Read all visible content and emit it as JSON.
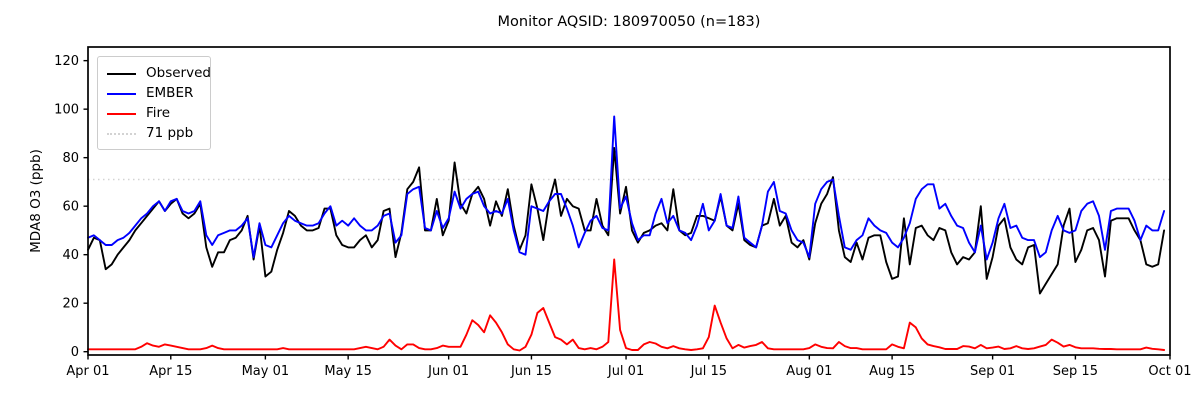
{
  "title": "Monitor AQSID: 180970050 (n=183)",
  "figure": {
    "background": "#ffffff",
    "axes_edge_color": "#000000"
  },
  "legend": {
    "items": [
      {
        "label": "Observed",
        "color": "#000000",
        "style": "solid"
      },
      {
        "label": "EMBER",
        "color": "#0000ff",
        "style": "solid"
      },
      {
        "label": "Fire",
        "color": "#ff0000",
        "style": "solid"
      },
      {
        "label": "71 ppb",
        "color": "#d3d3d3",
        "style": "dotted"
      }
    ]
  },
  "chart_data": {
    "type": "line",
    "title": "Monitor AQSID: 180970050 (n=183)",
    "xlabel": "",
    "ylabel": "MDA8 O3 (ppb)",
    "y_ticks": [
      0,
      20,
      40,
      60,
      80,
      100,
      120
    ],
    "ylim": [
      -1.5,
      125.6
    ],
    "x_unit": "daily values, day index 0 = Apr 01",
    "n_points": 183,
    "xlim_days": [
      0,
      183
    ],
    "grid": false,
    "legend_position": "upper left",
    "x_ticks": [
      {
        "day": 0,
        "label": "Apr 01"
      },
      {
        "day": 14,
        "label": "Apr 15"
      },
      {
        "day": 30,
        "label": "May 01"
      },
      {
        "day": 44,
        "label": "May 15"
      },
      {
        "day": 61,
        "label": "Jun 01"
      },
      {
        "day": 75,
        "label": "Jun 15"
      },
      {
        "day": 91,
        "label": "Jul 01"
      },
      {
        "day": 105,
        "label": "Jul 15"
      },
      {
        "day": 122,
        "label": "Aug 01"
      },
      {
        "day": 136,
        "label": "Aug 15"
      },
      {
        "day": 153,
        "label": "Sep 01"
      },
      {
        "day": 167,
        "label": "Sep 15"
      },
      {
        "day": 183,
        "label": "Oct 01"
      }
    ],
    "reference_line": {
      "label": "71 ppb",
      "value": 71,
      "color": "#d3d3d3",
      "style": "dotted"
    },
    "series": [
      {
        "name": "Observed",
        "color": "#000000",
        "values": [
          42,
          47,
          46,
          34,
          36,
          40,
          43,
          46,
          50,
          53,
          56,
          59,
          62,
          58,
          61,
          63,
          57,
          55,
          57,
          61,
          43,
          35,
          41,
          41,
          46,
          47,
          50,
          56,
          38,
          52,
          31,
          33,
          42,
          49,
          58,
          56,
          52,
          50,
          50,
          51,
          59,
          59,
          48,
          44,
          43,
          43,
          46,
          48,
          43,
          46,
          58,
          59,
          39,
          49,
          67,
          70,
          76,
          50,
          50,
          63,
          48,
          54,
          78,
          61,
          57,
          65,
          68,
          63,
          52,
          62,
          56,
          67,
          52,
          42,
          48,
          69,
          59,
          46,
          62,
          71,
          56,
          63,
          60,
          59,
          50,
          50,
          63,
          52,
          48,
          84,
          57,
          68,
          50,
          45,
          49,
          50,
          52,
          53,
          50,
          67,
          50,
          48,
          49,
          56,
          56,
          55,
          54,
          64,
          52,
          50,
          61,
          46,
          44,
          43,
          52,
          53,
          63,
          52,
          56,
          45,
          43,
          46,
          38,
          53,
          61,
          65,
          72,
          50,
          39,
          37,
          45,
          38,
          47,
          48,
          48,
          37,
          30,
          31,
          55,
          36,
          51,
          52,
          48,
          46,
          51,
          50,
          41,
          36,
          39,
          38,
          41,
          60,
          30,
          39,
          52,
          55,
          43,
          38,
          36,
          43,
          44,
          24,
          28,
          32,
          36,
          52,
          59,
          37,
          42,
          50,
          51,
          46,
          31,
          54,
          55,
          55,
          55,
          50,
          46,
          36,
          35,
          36,
          50
        ]
      },
      {
        "name": "EMBER",
        "color": "#0000ff",
        "values": [
          47,
          48,
          46,
          44,
          44,
          46,
          47,
          49,
          52,
          55,
          57,
          60,
          62,
          58,
          62,
          63,
          58,
          57,
          58,
          62,
          48,
          44,
          48,
          49,
          50,
          50,
          52,
          55,
          39,
          53,
          44,
          43,
          48,
          53,
          56,
          54,
          53,
          52,
          52,
          53,
          57,
          60,
          52,
          54,
          52,
          55,
          52,
          50,
          50,
          52,
          56,
          57,
          45,
          48,
          65,
          67,
          68,
          51,
          50,
          58,
          51,
          55,
          66,
          59,
          63,
          65,
          66,
          60,
          57,
          58,
          57,
          63,
          50,
          41,
          40,
          60,
          59,
          58,
          62,
          65,
          65,
          59,
          52,
          43,
          49,
          54,
          56,
          51,
          50,
          97,
          59,
          64,
          53,
          46,
          48,
          48,
          57,
          63,
          53,
          56,
          50,
          49,
          46,
          52,
          61,
          50,
          54,
          65,
          52,
          51,
          64,
          47,
          45,
          43,
          52,
          66,
          70,
          58,
          57,
          50,
          46,
          45,
          39,
          61,
          67,
          70,
          71,
          56,
          43,
          42,
          46,
          48,
          55,
          52,
          50,
          49,
          45,
          43,
          47,
          53,
          63,
          67,
          69,
          69,
          59,
          61,
          56,
          52,
          51,
          45,
          41,
          52,
          38,
          45,
          55,
          61,
          51,
          52,
          47,
          46,
          46,
          39,
          41,
          50,
          56,
          50,
          49,
          50,
          58,
          61,
          62,
          56,
          42,
          58,
          59,
          59,
          59,
          54,
          46,
          52,
          50,
          50,
          58
        ]
      },
      {
        "name": "Fire",
        "color": "#ff0000",
        "values": [
          1,
          1,
          1,
          1,
          1,
          1,
          1,
          1,
          1,
          2,
          3.5,
          2.5,
          2,
          3,
          2.5,
          2,
          1.5,
          1,
          1,
          1,
          1.5,
          2.5,
          1.5,
          1,
          1,
          1,
          1,
          1,
          1,
          1,
          1,
          1,
          1,
          1.5,
          1,
          1,
          1,
          1,
          1,
          1,
          1,
          1,
          1,
          1,
          1,
          1,
          1.5,
          2,
          1.5,
          1,
          2,
          5,
          2.5,
          1,
          3,
          3,
          1.5,
          1,
          1,
          1.5,
          2.5,
          2,
          2,
          2,
          7,
          13,
          11,
          8,
          15,
          12,
          8,
          3,
          1,
          0.5,
          2,
          7,
          16,
          18,
          12,
          6,
          5,
          3,
          5,
          1.5,
          1,
          1.5,
          1,
          2,
          4,
          38,
          9,
          1.5,
          0.7,
          0.7,
          3,
          4,
          3.4,
          2,
          1.4,
          2.3,
          1.4,
          1,
          0.7,
          1,
          1.4,
          6,
          19,
          12,
          5.5,
          1.4,
          2.8,
          1.7,
          2.3,
          2.8,
          4,
          1.4,
          1,
          1,
          1,
          1,
          1,
          1,
          1.5,
          3,
          2,
          1.5,
          1.4,
          4,
          2.3,
          1.5,
          1.5,
          1,
          1,
          1,
          1,
          1,
          3,
          2,
          1.4,
          12,
          10,
          5.5,
          3,
          2.3,
          1.8,
          1.1,
          1.1,
          1.1,
          2.3,
          2.1,
          1.4,
          2.8,
          1.4,
          1.7,
          2.1,
          1.1,
          1.4,
          2.3,
          1.4,
          1.1,
          1.4,
          2.1,
          2.8,
          5,
          3.7,
          2.1,
          2.8,
          1.8,
          1.4,
          1.4,
          1.4,
          1.2,
          1.1,
          1.1,
          1,
          1,
          1,
          1,
          1,
          1.7,
          1.2,
          1,
          0.7
        ]
      }
    ]
  }
}
